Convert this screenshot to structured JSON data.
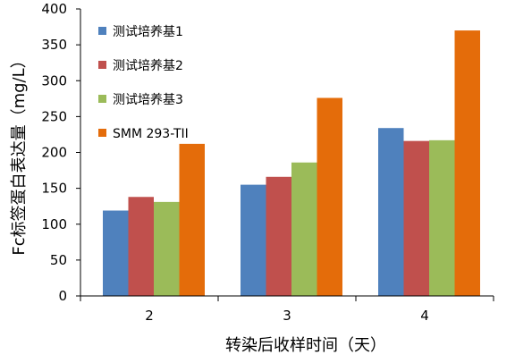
{
  "chart_data": {
    "type": "bar",
    "xlabel": "转染后收样时间（天）",
    "ylabel": "Fc标签蛋白表达量（mg/L）",
    "categories": [
      "2",
      "3",
      "4"
    ],
    "ylim": [
      0,
      400
    ],
    "yticks": [
      0,
      50,
      100,
      150,
      200,
      250,
      300,
      350,
      400
    ],
    "grid": false,
    "legend_position": "top-left",
    "series": [
      {
        "name": "测试培养基1",
        "color": "#4f81bd",
        "values": [
          119,
          155,
          234
        ]
      },
      {
        "name": "测试培养基2",
        "color": "#c0504d",
        "values": [
          138,
          166,
          216
        ]
      },
      {
        "name": "测试培养基3",
        "color": "#9bbb59",
        "values": [
          131,
          186,
          217
        ]
      },
      {
        "name": "SMM 293-TII",
        "color": "#e46c0a",
        "values": [
          212,
          276,
          370
        ]
      }
    ]
  }
}
